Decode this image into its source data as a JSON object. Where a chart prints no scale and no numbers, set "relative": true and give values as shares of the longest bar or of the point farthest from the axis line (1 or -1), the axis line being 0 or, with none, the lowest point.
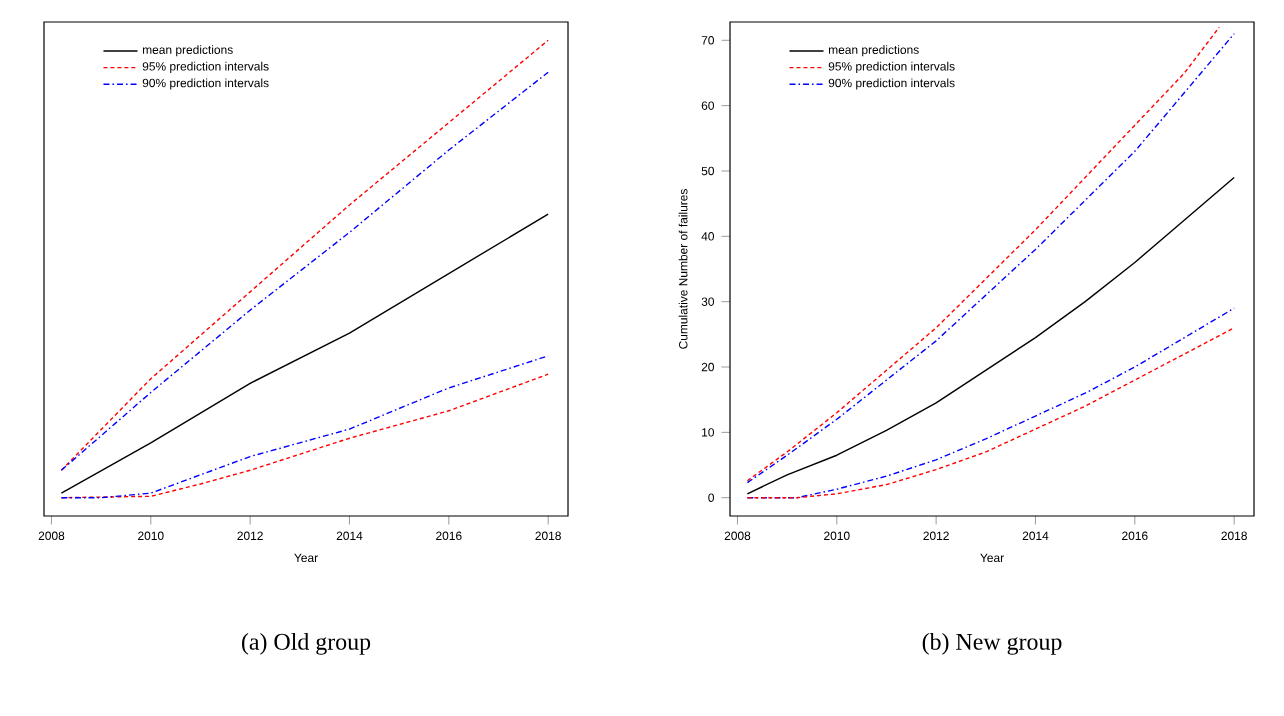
{
  "chart_data": [
    {
      "type": "line",
      "title": "(a) Old group",
      "xlabel": "Year",
      "relative": true,
      "xlim": [
        2007.85,
        2018.4
      ],
      "xticks": [
        2008,
        2010,
        2012,
        2014,
        2016,
        2018
      ],
      "legend": "top left",
      "series": [
        {
          "name": "mean predictions",
          "color": "#000000",
          "line_style": "solid",
          "x": [
            2008.2,
            2010,
            2012,
            2014,
            2016,
            2018
          ],
          "values": [
            0.01,
            0.12,
            0.25,
            0.36,
            0.49,
            0.62
          ]
        },
        {
          "name": "95% prediction intervals",
          "color": "#ff0000",
          "line_style": "dashed",
          "x": [
            2008.2,
            2010,
            2012,
            2014,
            2016,
            2018
          ],
          "values": [
            0.06,
            0.26,
            0.45,
            0.64,
            0.82,
            1.0
          ]
        },
        {
          "name": "90% prediction intervals",
          "color": "#0000ff",
          "line_style": "dashdot",
          "x": [
            2008.2,
            2010,
            2012,
            2014,
            2016,
            2018
          ],
          "values": [
            0.06,
            0.23,
            0.41,
            0.58,
            0.76,
            0.93
          ]
        },
        {
          "color": "#ff0000",
          "line_style": "dashed",
          "x": [
            2008.2,
            2010,
            2011,
            2012,
            2014,
            2016,
            2018
          ],
          "values": [
            0,
            0.003,
            0.03,
            0.06,
            0.13,
            0.19,
            0.27
          ]
        },
        {
          "color": "#0000ff",
          "line_style": "dashdot",
          "x": [
            2008.2,
            2009,
            2010,
            2012,
            2014,
            2016,
            2018
          ],
          "values": [
            0,
            0,
            0.01,
            0.09,
            0.15,
            0.24,
            0.31
          ]
        }
      ]
    },
    {
      "type": "line",
      "title": "(b) New group",
      "xlabel": "Year",
      "ylabel": "Cumulative Number of failures",
      "xlim": [
        2007.85,
        2018.4
      ],
      "xticks": [
        2008,
        2010,
        2012,
        2014,
        2016,
        2018
      ],
      "ylim": [
        -2.8,
        72.8
      ],
      "yticks": [
        0,
        10,
        20,
        30,
        40,
        50,
        60,
        70
      ],
      "legend": "top left",
      "series": [
        {
          "name": "mean predictions",
          "color": "#000000",
          "line_style": "solid",
          "x": [
            2008.2,
            2009,
            2010,
            2011,
            2012,
            2013,
            2014,
            2015,
            2016,
            2017,
            2018
          ],
          "values": [
            0.6,
            3.5,
            6.5,
            10.3,
            14.5,
            19.5,
            24.5,
            30,
            36,
            42.5,
            49
          ]
        },
        {
          "name": "95% prediction intervals",
          "color": "#ff0000",
          "line_style": "dashed",
          "x": [
            2008.2,
            2009,
            2010,
            2011,
            2012,
            2013,
            2014,
            2015,
            2016,
            2017,
            2017.7
          ],
          "values": [
            2.6,
            7,
            13,
            19.5,
            26,
            33.5,
            41,
            49,
            57,
            65,
            72
          ]
        },
        {
          "name": "90% prediction intervals",
          "color": "#0000ff",
          "line_style": "dashdot",
          "x": [
            2008.2,
            2009,
            2010,
            2011,
            2012,
            2013,
            2014,
            2015,
            2016,
            2017,
            2018
          ],
          "values": [
            2.3,
            6.5,
            12,
            18,
            24,
            31,
            38,
            45.5,
            53,
            62,
            71
          ]
        },
        {
          "color": "#0000ff",
          "line_style": "dashdot",
          "x": [
            2008.2,
            2009.2,
            2010,
            2011,
            2012,
            2013,
            2014,
            2015,
            2016,
            2017,
            2018
          ],
          "values": [
            0,
            0,
            1.3,
            3.3,
            5.8,
            9,
            12.5,
            16,
            20,
            24.5,
            29
          ]
        },
        {
          "color": "#ff0000",
          "line_style": "dashed",
          "x": [
            2008.2,
            2009.2,
            2010,
            2011,
            2012,
            2013,
            2014,
            2015,
            2016,
            2017,
            2018
          ],
          "values": [
            0,
            0,
            0.6,
            2,
            4.3,
            7,
            10.5,
            14,
            18,
            22,
            26
          ]
        }
      ]
    }
  ]
}
